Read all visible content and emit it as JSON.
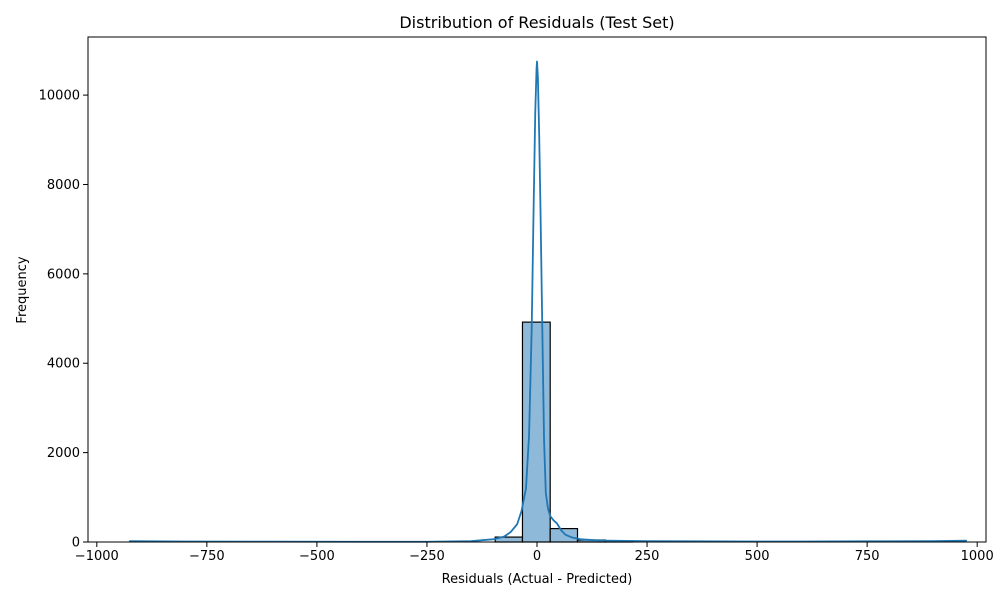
{
  "chart_data": {
    "type": "bar",
    "subtype": "histogram-with-kde",
    "title": "Distribution of Residuals (Test Set)",
    "xlabel": "Residuals (Actual - Predicted)",
    "ylabel": "Frequency",
    "xlim": [
      -1020,
      1020
    ],
    "ylim": [
      0,
      11300
    ],
    "xticks": [
      -1000,
      -750,
      -500,
      -250,
      0,
      250,
      500,
      750,
      1000
    ],
    "xtick_labels": [
      "−1000",
      "−750",
      "−500",
      "−250",
      "0",
      "250",
      "500",
      "750",
      "1000"
    ],
    "yticks": [
      0,
      2000,
      4000,
      6000,
      8000,
      10000
    ],
    "ytick_labels": [
      "0",
      "2000",
      "4000",
      "6000",
      "8000",
      "10000"
    ],
    "grid": false,
    "legend": "none",
    "colors": {
      "bar_fill": "#8fb9d9",
      "bar_edge": "#000000",
      "kde_line": "#1f77b4"
    },
    "bins": [
      {
        "x0": -95,
        "x1": -33,
        "count": 110
      },
      {
        "x0": -33,
        "x1": 30,
        "count": 4920
      },
      {
        "x0": 30,
        "x1": 92,
        "count": 300
      },
      {
        "x0": 92,
        "x1": 155,
        "count": 45
      },
      {
        "x0": 155,
        "x1": 218,
        "count": 20
      }
    ],
    "kde": {
      "x": [
        -925,
        -800,
        -600,
        -400,
        -250,
        -150,
        -100,
        -75,
        -60,
        -45,
        -35,
        -25,
        -18,
        -12,
        -8,
        -4,
        -1,
        0,
        2,
        5,
        8,
        12,
        16,
        20,
        25,
        30,
        38,
        45,
        55,
        65,
        80,
        100,
        130,
        160,
        200,
        250,
        350,
        500,
        600,
        750,
        900,
        975
      ],
      "y": [
        20,
        10,
        8,
        5,
        5,
        20,
        60,
        120,
        220,
        400,
        700,
        1200,
        2400,
        4800,
        7300,
        9600,
        10600,
        10750,
        10400,
        9100,
        7400,
        4800,
        2300,
        1100,
        750,
        580,
        480,
        420,
        260,
        160,
        100,
        60,
        40,
        30,
        25,
        20,
        15,
        10,
        10,
        15,
        20,
        30
      ]
    }
  }
}
